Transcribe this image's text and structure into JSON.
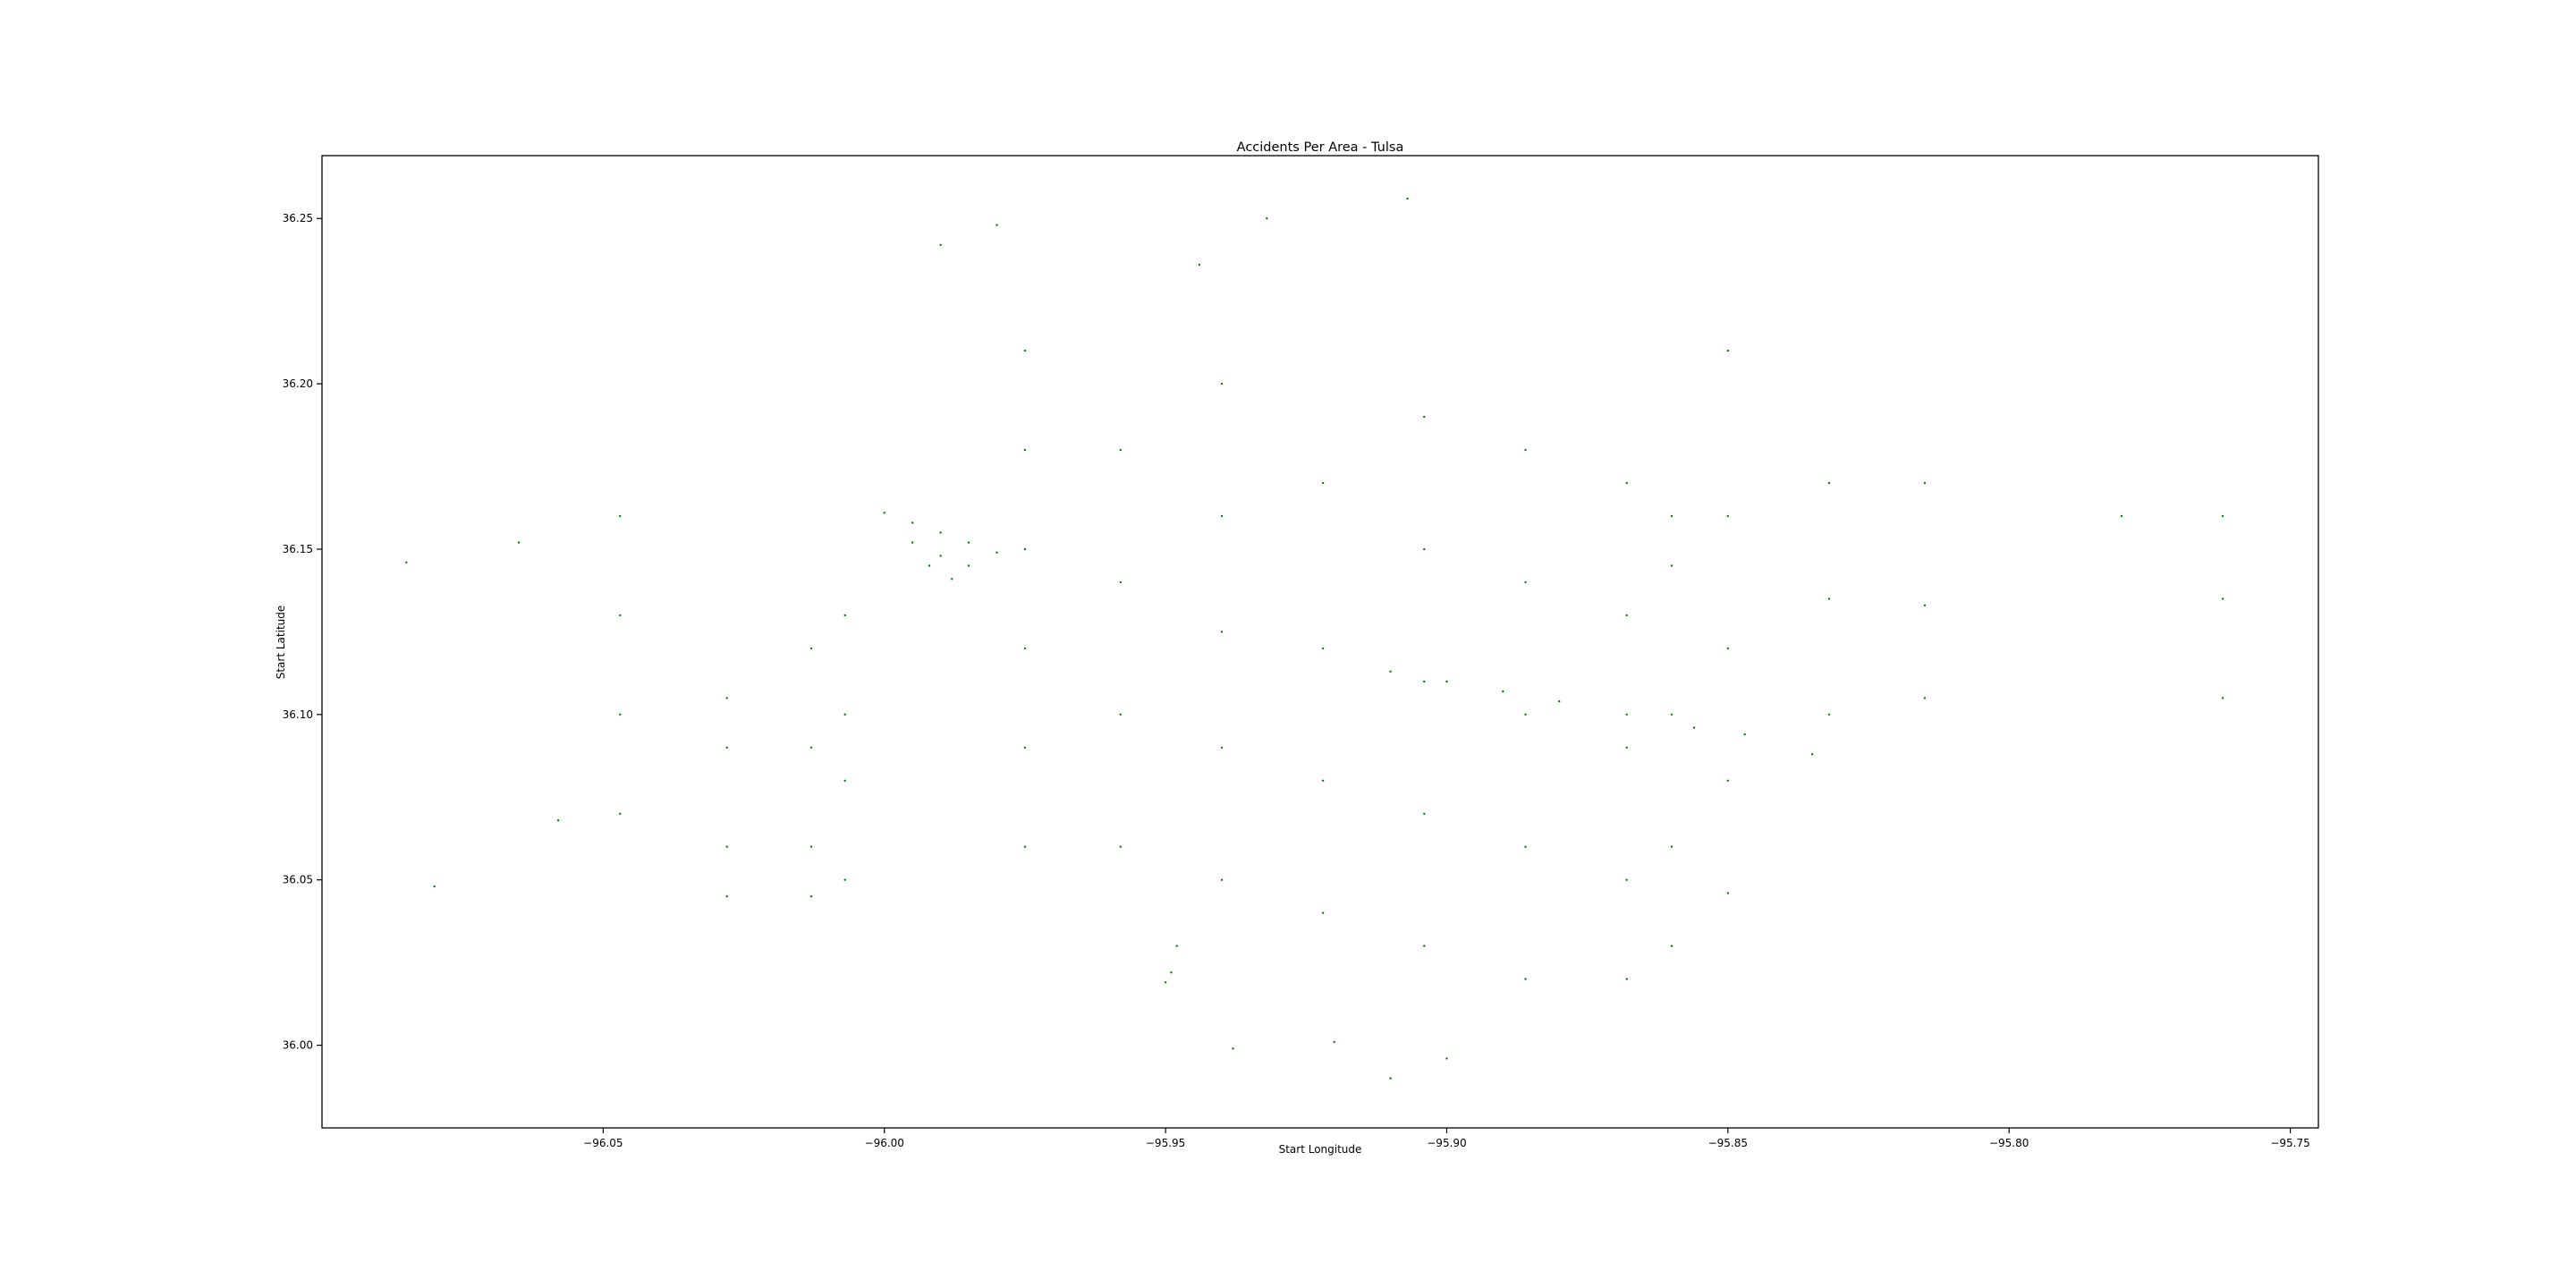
{
  "figure": {
    "background": "#ffffff"
  },
  "chart_data": {
    "type": "scatter",
    "title": "Accidents Per Area - Tulsa",
    "xlabel": "Start Longitude",
    "ylabel": "Start Latitude",
    "xlim": [
      -96.1,
      -95.745
    ],
    "ylim": [
      35.975,
      36.269
    ],
    "x_ticks": [
      -96.05,
      -96.0,
      -95.95,
      -95.9,
      -95.85,
      -95.8,
      -95.75
    ],
    "x_tick_labels": [
      "−96.05",
      "−96.00",
      "−95.95",
      "−95.90",
      "−95.85",
      "−95.80",
      "−95.75"
    ],
    "y_ticks": [
      36.0,
      36.05,
      36.1,
      36.15,
      36.2,
      36.25
    ],
    "y_tick_labels": [
      "36.00",
      "36.05",
      "36.10",
      "36.15",
      "36.20",
      "36.25"
    ],
    "grid": false,
    "legend": "none",
    "marker_color": "#008000",
    "series": [
      {
        "points": [
          [
            -96.0,
            36.161
          ],
          [
            -95.995,
            36.158
          ],
          [
            -95.99,
            36.155
          ],
          [
            -95.985,
            36.152
          ],
          [
            -95.98,
            36.149
          ],
          [
            -95.995,
            36.152
          ],
          [
            -95.99,
            36.148
          ],
          [
            -95.985,
            36.145
          ],
          [
            -95.992,
            36.145
          ],
          [
            -95.988,
            36.141
          ],
          [
            -95.975,
            36.21
          ],
          [
            -95.975,
            36.18
          ],
          [
            -95.975,
            36.15
          ],
          [
            -95.975,
            36.12
          ],
          [
            -95.975,
            36.09
          ],
          [
            -95.975,
            36.06
          ],
          [
            -95.958,
            36.18
          ],
          [
            -95.958,
            36.14
          ],
          [
            -95.958,
            36.1
          ],
          [
            -95.958,
            36.06
          ],
          [
            -95.94,
            36.2
          ],
          [
            -95.94,
            36.16
          ],
          [
            -95.94,
            36.125
          ],
          [
            -95.94,
            36.09
          ],
          [
            -95.94,
            36.05
          ],
          [
            -95.922,
            36.17
          ],
          [
            -95.922,
            36.12
          ],
          [
            -95.922,
            36.08
          ],
          [
            -95.922,
            36.04
          ],
          [
            -95.904,
            36.19
          ],
          [
            -95.904,
            36.15
          ],
          [
            -95.904,
            36.11
          ],
          [
            -95.904,
            36.07
          ],
          [
            -95.904,
            36.03
          ],
          [
            -95.886,
            36.18
          ],
          [
            -95.886,
            36.14
          ],
          [
            -95.886,
            36.1
          ],
          [
            -95.886,
            36.06
          ],
          [
            -95.886,
            36.02
          ],
          [
            -95.868,
            36.17
          ],
          [
            -95.868,
            36.13
          ],
          [
            -95.868,
            36.09
          ],
          [
            -95.868,
            36.05
          ],
          [
            -95.868,
            36.02
          ],
          [
            -95.86,
            36.16
          ],
          [
            -95.86,
            36.145
          ],
          [
            -95.86,
            36.1
          ],
          [
            -95.86,
            36.06
          ],
          [
            -95.86,
            36.03
          ],
          [
            -95.85,
            36.21
          ],
          [
            -95.85,
            36.16
          ],
          [
            -95.85,
            36.12
          ],
          [
            -95.85,
            36.08
          ],
          [
            -95.85,
            36.046
          ],
          [
            -95.832,
            36.17
          ],
          [
            -95.832,
            36.135
          ],
          [
            -95.832,
            36.1
          ],
          [
            -95.815,
            36.17
          ],
          [
            -95.815,
            36.133
          ],
          [
            -95.815,
            36.105
          ],
          [
            -95.78,
            36.16
          ],
          [
            -95.762,
            36.16
          ],
          [
            -95.762,
            36.135
          ],
          [
            -95.762,
            36.105
          ],
          [
            -96.028,
            36.105
          ],
          [
            -96.028,
            36.09
          ],
          [
            -96.028,
            36.06
          ],
          [
            -96.028,
            36.045
          ],
          [
            -96.013,
            36.12
          ],
          [
            -96.013,
            36.09
          ],
          [
            -96.013,
            36.06
          ],
          [
            -96.013,
            36.045
          ],
          [
            -96.007,
            36.13
          ],
          [
            -96.007,
            36.1
          ],
          [
            -96.007,
            36.08
          ],
          [
            -96.007,
            36.05
          ],
          [
            -96.047,
            36.16
          ],
          [
            -96.047,
            36.13
          ],
          [
            -96.047,
            36.1
          ],
          [
            -96.047,
            36.07
          ],
          [
            -96.085,
            36.146
          ],
          [
            -96.065,
            36.152
          ],
          [
            -96.08,
            36.048
          ],
          [
            -96.058,
            36.068
          ],
          [
            -95.948,
            36.03
          ],
          [
            -95.949,
            36.022
          ],
          [
            -95.95,
            36.019
          ],
          [
            -95.944,
            36.236
          ],
          [
            -95.99,
            36.242
          ],
          [
            -95.98,
            36.248
          ],
          [
            -95.932,
            36.25
          ],
          [
            -95.907,
            36.256
          ],
          [
            -95.91,
            35.99
          ],
          [
            -95.9,
            35.996
          ],
          [
            -95.92,
            36.001
          ],
          [
            -95.938,
            35.999
          ],
          [
            -95.91,
            36.113
          ],
          [
            -95.9,
            36.11
          ],
          [
            -95.89,
            36.107
          ],
          [
            -95.88,
            36.104
          ],
          [
            -95.868,
            36.1
          ],
          [
            -95.856,
            36.096
          ],
          [
            -95.847,
            36.094
          ],
          [
            -95.835,
            36.088
          ]
        ]
      }
    ]
  }
}
